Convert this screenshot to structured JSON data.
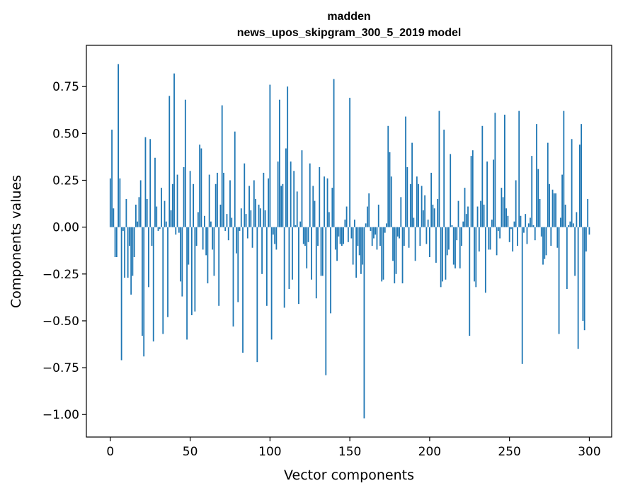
{
  "chart_data": {
    "type": "bar",
    "title": "madden",
    "subtitle": "news_upos_skipgram_300_5_2019 model",
    "xlabel": "Vector components",
    "ylabel": "Components values",
    "xlim": [
      -15,
      314
    ],
    "ylim": [
      -1.12,
      0.97
    ],
    "x_ticks": [
      0,
      50,
      100,
      150,
      200,
      250,
      300
    ],
    "x_tick_labels": [
      "0",
      "50",
      "100",
      "150",
      "200",
      "250",
      "300"
    ],
    "y_ticks": [
      0.75,
      0.5,
      0.25,
      0.0,
      -0.25,
      -0.5,
      -0.75,
      -1.0
    ],
    "y_tick_labels": [
      "0.75",
      "0.50",
      "0.25",
      "0.00",
      "−0.25",
      "−0.50",
      "−0.75",
      "−1.00"
    ],
    "color": "#1f77b4",
    "x": "indices 0..299",
    "values": [
      0.26,
      0.52,
      0.1,
      -0.16,
      -0.16,
      0.87,
      0.26,
      -0.71,
      -0.02,
      -0.27,
      0.15,
      -0.27,
      -0.1,
      -0.36,
      -0.26,
      -0.16,
      0.12,
      0.03,
      0.16,
      0.25,
      -0.58,
      -0.69,
      0.48,
      0.15,
      -0.32,
      0.47,
      -0.1,
      -0.61,
      0.37,
      0.11,
      -0.02,
      -0.01,
      0.21,
      -0.57,
      0.14,
      0.03,
      -0.48,
      0.7,
      0.09,
      0.23,
      0.82,
      -0.04,
      0.28,
      -0.03,
      -0.29,
      -0.37,
      0.32,
      0.68,
      -0.6,
      -0.2,
      0.3,
      -0.47,
      0.23,
      -0.45,
      -0.1,
      0.08,
      0.44,
      0.42,
      -0.12,
      0.06,
      -0.15,
      -0.3,
      0.28,
      0.03,
      -0.12,
      -0.26,
      0.23,
      0.29,
      -0.42,
      0.12,
      0.65,
      0.29,
      -0.02,
      0.07,
      -0.07,
      0.25,
      0.05,
      -0.53,
      0.51,
      -0.14,
      -0.4,
      -0.02,
      0.1,
      -0.67,
      0.34,
      0.07,
      -0.06,
      0.22,
      0.09,
      -0.11,
      0.25,
      0.15,
      -0.72,
      0.12,
      0.1,
      -0.25,
      0.29,
      0.09,
      -0.42,
      0.26,
      0.76,
      -0.6,
      -0.04,
      -0.09,
      -0.12,
      0.35,
      0.68,
      0.22,
      0.23,
      -0.43,
      0.42,
      0.75,
      -0.33,
      0.35,
      -0.28,
      0.3,
      0.01,
      0.19,
      -0.41,
      0.03,
      0.41,
      -0.09,
      -0.1,
      -0.22,
      -0.08,
      0.34,
      -0.28,
      0.22,
      0.14,
      -0.38,
      -0.1,
      0.32,
      -0.26,
      -0.26,
      0.27,
      -0.79,
      0.26,
      0.08,
      -0.46,
      0.21,
      0.79,
      -0.12,
      -0.18,
      -0.05,
      -0.09,
      -0.1,
      -0.09,
      0.04,
      0.11,
      -0.08,
      0.69,
      -0.06,
      -0.2,
      0.04,
      -0.27,
      -0.1,
      -0.15,
      -0.25,
      -0.2,
      -1.02,
      0.02,
      0.11,
      0.18,
      -0.02,
      -0.1,
      -0.06,
      -0.04,
      -0.12,
      0.12,
      -0.1,
      -0.29,
      -0.28,
      -0.03,
      0.02,
      0.54,
      0.4,
      0.27,
      -0.18,
      -0.3,
      -0.25,
      -0.05,
      -0.06,
      0.16,
      -0.3,
      -0.1,
      0.59,
      0.32,
      -0.11,
      0.23,
      0.45,
      0.05,
      -0.18,
      0.27,
      0.23,
      -0.1,
      0.22,
      0.09,
      0.17,
      -0.09,
      0.04,
      -0.16,
      0.29,
      0.12,
      0.1,
      -0.19,
      0.15,
      0.62,
      -0.32,
      -0.29,
      0.52,
      -0.28,
      -0.15,
      -0.12,
      0.39,
      0.01,
      -0.2,
      -0.22,
      -0.07,
      0.14,
      -0.22,
      -0.1,
      0.03,
      0.21,
      0.07,
      0.11,
      -0.58,
      0.38,
      0.41,
      -0.29,
      -0.32,
      0.11,
      -0.13,
      0.14,
      0.54,
      0.12,
      -0.35,
      0.35,
      -0.12,
      -0.12,
      0.04,
      0.36,
      0.61,
      -0.15,
      -0.02,
      -0.06,
      0.21,
      0.16,
      0.6,
      0.1,
      0.06,
      -0.08,
      -0.01,
      -0.13,
      0.03,
      0.25,
      -0.1,
      0.62,
      0.06,
      -0.73,
      -0.03,
      0.07,
      -0.09,
      0.02,
      0.05,
      0.38,
      0.01,
      -0.07,
      0.55,
      0.31,
      0.15,
      -0.05,
      -0.2,
      -0.17,
      -0.15,
      0.45,
      0.23,
      -0.1,
      0.2,
      0.18,
      0.18,
      -0.11,
      -0.57,
      0.05,
      0.28,
      0.62,
      0.12,
      -0.33,
      0.01,
      0.03,
      0.47,
      0.02,
      -0.26,
      0.08,
      -0.65,
      0.44,
      0.55,
      -0.5,
      -0.55,
      -0.13,
      0.15,
      -0.04
    ]
  }
}
